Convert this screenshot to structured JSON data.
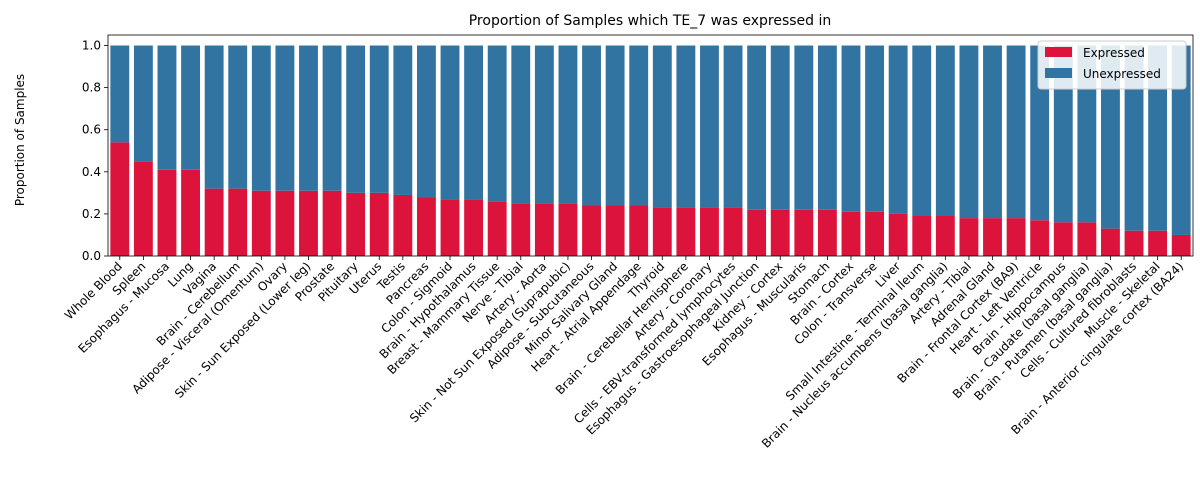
{
  "chart_data": {
    "type": "bar",
    "stacked": true,
    "title": "Proportion of Samples which TE_7 was expressed in",
    "xlabel": "",
    "ylabel": "Proportion of Samples",
    "ylim": [
      0,
      1.05
    ],
    "yticks": [
      0.0,
      0.2,
      0.4,
      0.6,
      0.8,
      1.0
    ],
    "ytick_labels": [
      "0.0",
      "0.2",
      "0.4",
      "0.6",
      "0.8",
      "1.0"
    ],
    "grid": false,
    "legend_position": "top-right",
    "categories": [
      "Whole Blood",
      "Spleen",
      "Esophagus - Mucosa",
      "Lung",
      "Vagina",
      "Brain - Cerebellum",
      "Adipose - Visceral (Omentum)",
      "Ovary",
      "Skin - Sun Exposed (Lower leg)",
      "Prostate",
      "Pituitary",
      "Uterus",
      "Testis",
      "Pancreas",
      "Colon - Sigmoid",
      "Brain - Hypothalamus",
      "Breast - Mammary Tissue",
      "Nerve - Tibial",
      "Artery - Aorta",
      "Skin - Not Sun Exposed (Suprapubic)",
      "Adipose - Subcutaneous",
      "Minor Salivary Gland",
      "Heart - Atrial Appendage",
      "Thyroid",
      "Brain - Cerebellar Hemisphere",
      "Artery - Coronary",
      "Cells - EBV-transformed lymphocytes",
      "Esophagus - Gastroesophageal Junction",
      "Kidney - Cortex",
      "Esophagus - Muscularis",
      "Stomach",
      "Brain - Cortex",
      "Colon - Transverse",
      "Liver",
      "Small Intestine - Terminal Ileum",
      "Brain - Nucleus accumbens (basal ganglia)",
      "Artery - Tibial",
      "Adrenal Gland",
      "Brain - Frontal Cortex (BA9)",
      "Heart - Left Ventricle",
      "Brain - Hippocampus",
      "Brain - Caudate (basal ganglia)",
      "Brain - Putamen (basal ganglia)",
      "Cells - Cultured fibroblasts",
      "Muscle - Skeletal",
      "Brain - Anterior cingulate cortex (BA24)"
    ],
    "series": [
      {
        "name": "Expressed",
        "color": "#dc143c",
        "values": [
          0.54,
          0.45,
          0.41,
          0.41,
          0.32,
          0.32,
          0.31,
          0.31,
          0.31,
          0.31,
          0.3,
          0.3,
          0.29,
          0.28,
          0.27,
          0.27,
          0.26,
          0.25,
          0.25,
          0.25,
          0.24,
          0.24,
          0.24,
          0.23,
          0.23,
          0.23,
          0.23,
          0.22,
          0.22,
          0.22,
          0.22,
          0.21,
          0.21,
          0.2,
          0.19,
          0.19,
          0.18,
          0.18,
          0.18,
          0.17,
          0.16,
          0.16,
          0.13,
          0.12,
          0.12,
          0.1
        ]
      },
      {
        "name": "Unexpressed",
        "color": "#3274a1",
        "values": [
          0.46,
          0.55,
          0.59,
          0.59,
          0.68,
          0.68,
          0.69,
          0.69,
          0.69,
          0.69,
          0.7,
          0.7,
          0.71,
          0.72,
          0.73,
          0.73,
          0.74,
          0.75,
          0.75,
          0.75,
          0.76,
          0.76,
          0.76,
          0.77,
          0.77,
          0.77,
          0.77,
          0.78,
          0.78,
          0.78,
          0.78,
          0.79,
          0.79,
          0.8,
          0.81,
          0.81,
          0.82,
          0.82,
          0.82,
          0.83,
          0.84,
          0.84,
          0.87,
          0.88,
          0.88,
          0.9
        ]
      }
    ]
  }
}
